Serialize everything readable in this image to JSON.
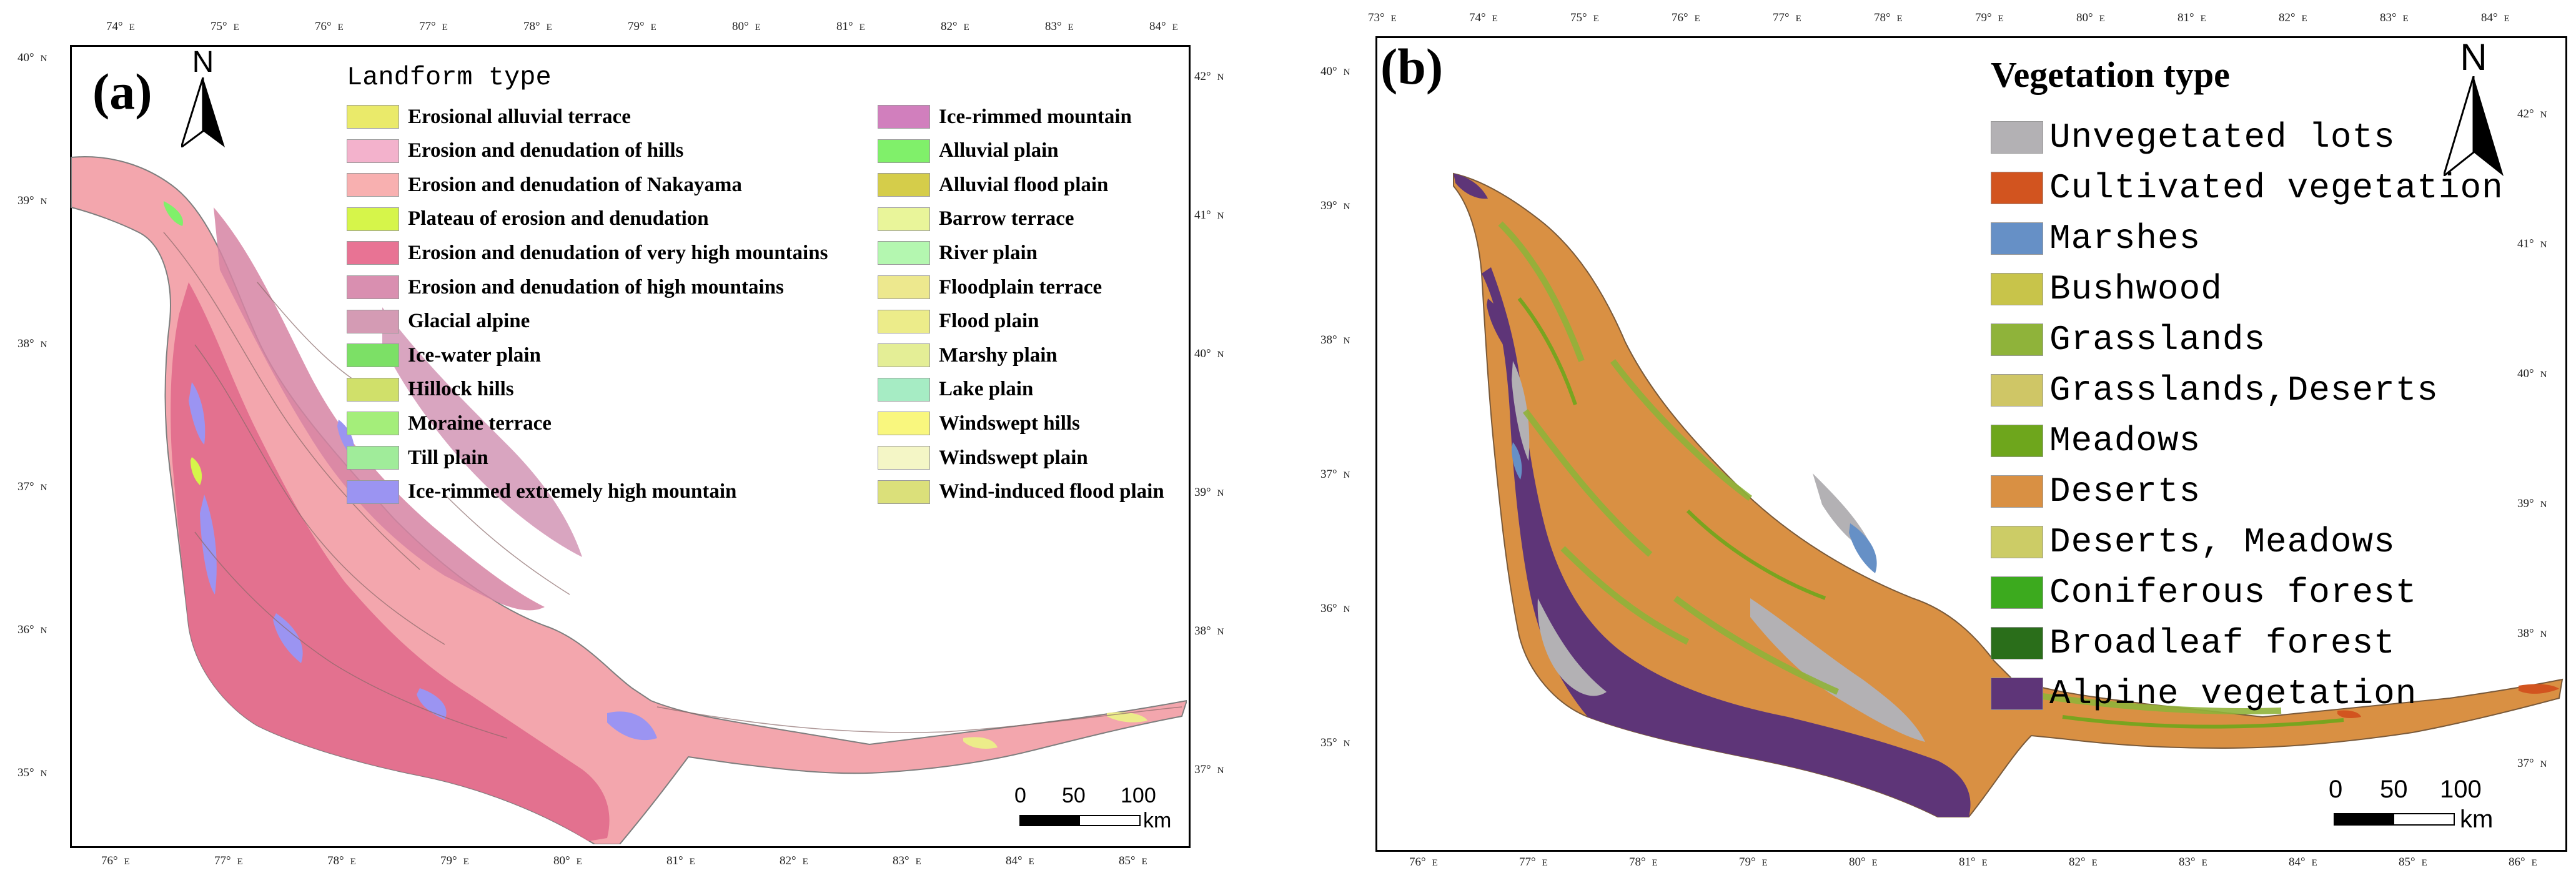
{
  "panel_a": {
    "label": "(a)",
    "legend_title": "Landform type",
    "north": "N",
    "scale": {
      "labels": [
        "0",
        "50",
        "100"
      ],
      "unit": "km"
    },
    "top_ticks": [
      "74°",
      "75°",
      "76°",
      "77°",
      "78°",
      "79°",
      "80°",
      "81°",
      "82°",
      "83°",
      "84°"
    ],
    "bottom_ticks": [
      "76°",
      "77°",
      "78°",
      "79°",
      "80°",
      "81°",
      "82°",
      "83°",
      "84°",
      "85°"
    ],
    "left_ticks": [
      "40°",
      "39°",
      "38°",
      "37°",
      "36°",
      "35°"
    ],
    "right_ticks": [
      "42°",
      "41°",
      "40°",
      "39°",
      "38°",
      "37°"
    ],
    "unit_e": "E",
    "unit_n": "N",
    "legend": [
      {
        "label": "Erosional alluvial terrace",
        "color": "#eaea6a"
      },
      {
        "label": "Erosion and denudation of hills",
        "color": "#f3b2cc"
      },
      {
        "label": "Erosion and denudation of Nakayama",
        "color": "#f8b0b0"
      },
      {
        "label": "Plateau of erosion and denudation",
        "color": "#d6f54a"
      },
      {
        "label": "Erosion and denudation of very high mountains",
        "color": "#e87394"
      },
      {
        "label": "Erosion and denudation of high mountains",
        "color": "#d98fb0"
      },
      {
        "label": "Glacial alpine",
        "color": "#d49bb4"
      },
      {
        "label": "Ice-water plain",
        "color": "#7ce066"
      },
      {
        "label": "Hillock hills",
        "color": "#d0e06a"
      },
      {
        "label": "Moraine terrace",
        "color": "#a4ee7a"
      },
      {
        "label": "Till plain",
        "color": "#a0ec9a"
      },
      {
        "label": "Ice-rimmed extremely high mountain",
        "color": "#9b94f2"
      },
      {
        "label": "Ice-rimmed mountain",
        "color": "#d17fbd"
      },
      {
        "label": "Alluvial plain",
        "color": "#80f06a"
      },
      {
        "label": "Alluvial flood plain",
        "color": "#d5cd4a"
      },
      {
        "label": "Barrow terrace",
        "color": "#e9f59a"
      },
      {
        "label": "River plain",
        "color": "#b4f7b0"
      },
      {
        "label": "Floodplain terrace",
        "color": "#ede88e"
      },
      {
        "label": "Flood plain",
        "color": "#ecec8a"
      },
      {
        "label": "Marshy plain",
        "color": "#e4ee96"
      },
      {
        "label": "Lake plain",
        "color": "#a6ecc4"
      },
      {
        "label": "Windswept hills",
        "color": "#f9f77e"
      },
      {
        "label": "Windswept plain",
        "color": "#f4f6c6"
      },
      {
        "label": "Wind-induced flood plain",
        "color": "#dbe07a"
      }
    ]
  },
  "panel_b": {
    "label": "(b)",
    "legend_title": "Vegetation type",
    "north": "N",
    "scale": {
      "labels": [
        "0",
        "50",
        "100"
      ],
      "unit": "km"
    },
    "top_ticks": [
      "73°",
      "74°",
      "75°",
      "76°",
      "77°",
      "78°",
      "79°",
      "80°",
      "81°",
      "82°",
      "83°",
      "84°"
    ],
    "bottom_ticks": [
      "76°",
      "77°",
      "78°",
      "79°",
      "80°",
      "81°",
      "82°",
      "83°",
      "84°",
      "85°",
      "86°"
    ],
    "left_ticks": [
      "40°",
      "39°",
      "38°",
      "37°",
      "36°",
      "35°"
    ],
    "right_ticks": [
      "42°",
      "41°",
      "40°",
      "39°",
      "38°",
      "37°"
    ],
    "unit_e": "E",
    "unit_n": "N",
    "legend": [
      {
        "label": "Unvegetated lots",
        "color": "#b3b1b4"
      },
      {
        "label": "Cultivated vegetation",
        "color": "#d2541f"
      },
      {
        "label": "Marshes",
        "color": "#6690c6"
      },
      {
        "label": "Bushwood",
        "color": "#c8c44a"
      },
      {
        "label": "Grasslands",
        "color": "#8fb33a"
      },
      {
        "label": "Grasslands,Deserts",
        "color": "#cfc666"
      },
      {
        "label": "Meadows",
        "color": "#6ea61c"
      },
      {
        "label": "Deserts",
        "color": "#d99043"
      },
      {
        "label": "Deserts, Meadows",
        "color": "#cccc66"
      },
      {
        "label": "Coniferous forest",
        "color": "#3caa1e"
      },
      {
        "label": "Broadleaf forest",
        "color": "#2a6e1a"
      },
      {
        "label": "Alpine vegetation",
        "color": "#5e3578"
      }
    ]
  }
}
